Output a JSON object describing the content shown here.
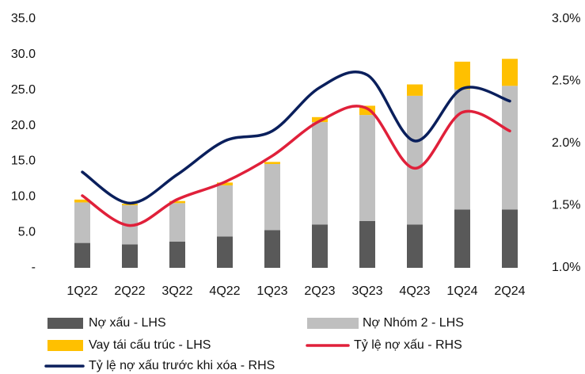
{
  "chart_data": {
    "type": "bar",
    "categories": [
      "1Q22",
      "2Q22",
      "3Q22",
      "4Q22",
      "1Q23",
      "2Q23",
      "3Q23",
      "4Q23",
      "1Q24",
      "2Q24"
    ],
    "series": [
      {
        "name": "Nợ xấu - LHS",
        "type": "bar",
        "color": "#595959",
        "values": [
          3.5,
          3.3,
          3.7,
          4.4,
          5.3,
          6.1,
          6.6,
          6.1,
          8.2,
          8.2
        ]
      },
      {
        "name": "Nợ Nhóm 2 - LHS",
        "type": "bar",
        "color": "#bfbfbf",
        "values": [
          5.7,
          5.5,
          5.4,
          7.2,
          9.3,
          14.4,
          14.9,
          18.1,
          16.9,
          17.4
        ]
      },
      {
        "name": "Vay tái cấu trúc - LHS",
        "type": "bar",
        "color": "#ffc000",
        "values": [
          0.4,
          0.2,
          0.3,
          0.4,
          0.3,
          0.7,
          1.3,
          1.6,
          3.9,
          3.8
        ]
      },
      {
        "name": "Tỷ lệ nợ xấu - RHS",
        "type": "line",
        "axis": "y2",
        "color": "#e0203a",
        "values": [
          1.58,
          1.34,
          1.55,
          1.69,
          1.9,
          2.18,
          2.28,
          1.8,
          2.25,
          2.1
        ]
      },
      {
        "name": "Tỷ lệ nợ xấu trước khi xóa - RHS",
        "type": "line",
        "axis": "y2",
        "color": "#0a1f5c",
        "values": [
          1.77,
          1.52,
          1.75,
          2.02,
          2.1,
          2.45,
          2.55,
          2.02,
          2.44,
          2.34
        ]
      }
    ],
    "ylim": [
      0,
      35
    ],
    "yticks": [
      {
        "value": 0,
        "label": "-"
      },
      {
        "value": 5,
        "label": "5.0"
      },
      {
        "value": 10,
        "label": "10.0"
      },
      {
        "value": 15,
        "label": "15.0"
      },
      {
        "value": 20,
        "label": "20.0"
      },
      {
        "value": 25,
        "label": "25.0"
      },
      {
        "value": 30,
        "label": "30.0"
      },
      {
        "value": 35,
        "label": "35.0"
      }
    ],
    "y2lim": [
      1.0,
      3.0
    ],
    "y2ticks": [
      {
        "value": 1.0,
        "label": "1.0%"
      },
      {
        "value": 1.5,
        "label": "1.5%"
      },
      {
        "value": 2.0,
        "label": "2.0%"
      },
      {
        "value": 2.5,
        "label": "2.5%"
      },
      {
        "value": 3.0,
        "label": "3.0%"
      }
    ],
    "grid": false
  }
}
